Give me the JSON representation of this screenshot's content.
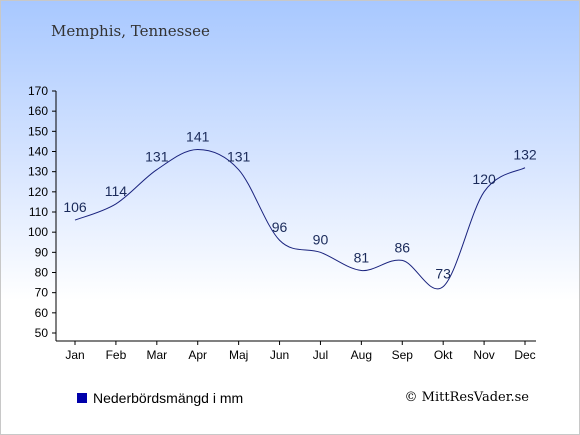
{
  "title": "Memphis, Tennessee",
  "legend_label": "Nederbördsmängd i mm",
  "copyright": "© MittResVader.se",
  "colors": {
    "line": "#1a237e",
    "legend": "#0000aa",
    "axis": "#000000"
  },
  "chart_data": {
    "type": "line",
    "categories": [
      "Jan",
      "Feb",
      "Mar",
      "Apr",
      "Maj",
      "Jun",
      "Jul",
      "Aug",
      "Sep",
      "Okt",
      "Nov",
      "Dec"
    ],
    "values": [
      106,
      114,
      131,
      141,
      131,
      96,
      90,
      81,
      86,
      73,
      120,
      132
    ],
    "ylim": [
      50,
      170
    ],
    "yticks": [
      50,
      60,
      70,
      80,
      90,
      100,
      110,
      120,
      130,
      140,
      150,
      160,
      170
    ],
    "grid": false,
    "legend_position": "bottom-left"
  }
}
